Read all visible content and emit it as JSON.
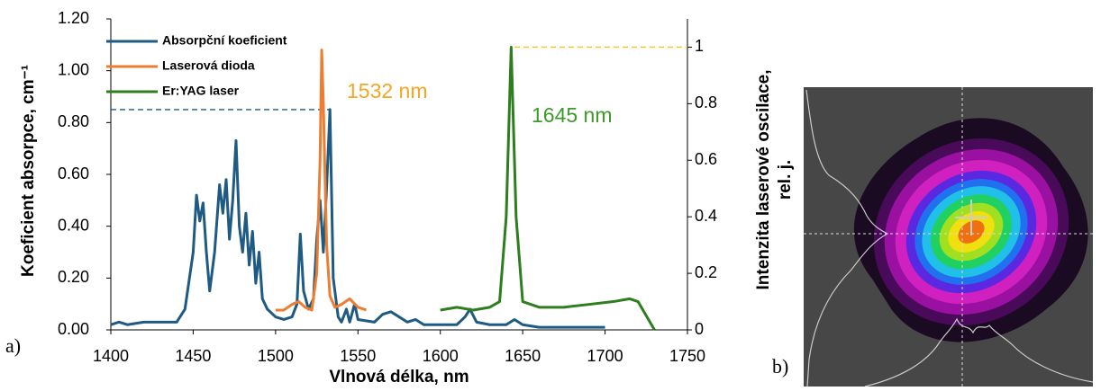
{
  "chart_data": {
    "type": "line",
    "x_label": "Vlnová délka, nm",
    "y_label": "Koeficient absorpce, cm⁻¹",
    "y2_label": [
      "Intenzita laserové oscilace,",
      "rel. j."
    ],
    "xlim": [
      1400,
      1750
    ],
    "xticks": [
      1400,
      1450,
      1500,
      1550,
      1600,
      1650,
      1700,
      1750
    ],
    "ylim": [
      0,
      1.2
    ],
    "yticks": [
      {
        "value": 0,
        "label": "0.00"
      },
      {
        "value": 0.2,
        "label": "0.20"
      },
      {
        "value": 0.4,
        "label": "0.40"
      },
      {
        "value": 0.6,
        "label": "0.60"
      },
      {
        "value": 0.8,
        "label": "0.80"
      },
      {
        "value": 1.0,
        "label": "1.00"
      },
      {
        "value": 1.2,
        "label": "1.20"
      }
    ],
    "y2lim": [
      0,
      1.1
    ],
    "y2ticks": [
      0,
      0.2,
      0.4,
      0.6,
      0.8,
      1
    ],
    "grid": false,
    "legend": "upper left",
    "series": [
      {
        "name": "Absorpční koeficient",
        "color": "#1f5a82",
        "x": [
          1400,
          1405,
          1410,
          1420,
          1430,
          1440,
          1445,
          1450,
          1452,
          1454,
          1456,
          1458,
          1460,
          1463,
          1466,
          1468,
          1470,
          1472,
          1474,
          1476,
          1478,
          1480,
          1482,
          1484,
          1486,
          1488,
          1490,
          1492,
          1495,
          1500,
          1505,
          1510,
          1513,
          1515,
          1517,
          1520,
          1523,
          1525,
          1527,
          1529,
          1531,
          1533,
          1535,
          1538,
          1540,
          1543,
          1545,
          1548,
          1550,
          1560,
          1565,
          1570,
          1575,
          1580,
          1585,
          1590,
          1600,
          1610,
          1615,
          1618,
          1622,
          1630,
          1640,
          1645,
          1650,
          1660,
          1680,
          1700
        ],
        "values": [
          0.02,
          0.03,
          0.02,
          0.03,
          0.03,
          0.03,
          0.08,
          0.3,
          0.52,
          0.42,
          0.49,
          0.3,
          0.15,
          0.3,
          0.56,
          0.45,
          0.58,
          0.35,
          0.5,
          0.73,
          0.4,
          0.3,
          0.45,
          0.25,
          0.38,
          0.18,
          0.3,
          0.12,
          0.08,
          0.05,
          0.04,
          0.05,
          0.1,
          0.37,
          0.15,
          0.08,
          0.12,
          0.35,
          0.5,
          0.3,
          0.55,
          0.85,
          0.2,
          0.05,
          0.03,
          0.08,
          0.03,
          0.1,
          0.04,
          0.03,
          0.06,
          0.07,
          0.05,
          0.03,
          0.04,
          0.02,
          0.02,
          0.02,
          0.05,
          0.08,
          0.03,
          0.02,
          0.02,
          0.04,
          0.02,
          0.01,
          0.01,
          0.01
        ]
      },
      {
        "name": "Laserová dioda",
        "color": "#ed7d31",
        "axis": "y2",
        "x": [
          1500,
          1505,
          1510,
          1514,
          1518,
          1522,
          1525,
          1527,
          1528,
          1529,
          1531,
          1533,
          1536,
          1540,
          1545,
          1550,
          1555
        ],
        "values": [
          0.07,
          0.07,
          0.09,
          0.1,
          0.08,
          0.07,
          0.2,
          0.6,
          0.99,
          0.8,
          0.3,
          0.12,
          0.08,
          0.09,
          0.11,
          0.08,
          0.07
        ]
      },
      {
        "name": "Er:YAG laser",
        "color": "#2e7d1e",
        "axis": "y2",
        "x": [
          1600,
          1610,
          1620,
          1630,
          1636,
          1640,
          1643,
          1646,
          1650,
          1660,
          1675,
          1690,
          1705,
          1715,
          1720,
          1725,
          1730
        ],
        "values": [
          0.07,
          0.08,
          0.07,
          0.08,
          0.1,
          0.4,
          1.0,
          0.4,
          0.1,
          0.08,
          0.08,
          0.09,
          0.1,
          0.11,
          0.1,
          0.05,
          0.0
        ]
      }
    ],
    "reference_lines": [
      {
        "axis": "y",
        "value": 0.85,
        "x": [
          1400,
          1533
        ],
        "color": "#1f5a82"
      },
      {
        "axis": "y2",
        "value": 1,
        "x": [
          1645,
          1750
        ],
        "color": "#f5c518"
      }
    ],
    "annotations": [
      {
        "text": "1532 nm",
        "color": "#f5a623"
      },
      {
        "text": "1645 nm",
        "color": "#3c9a2a"
      }
    ],
    "panel_labels": [
      "a)",
      "b)"
    ]
  }
}
